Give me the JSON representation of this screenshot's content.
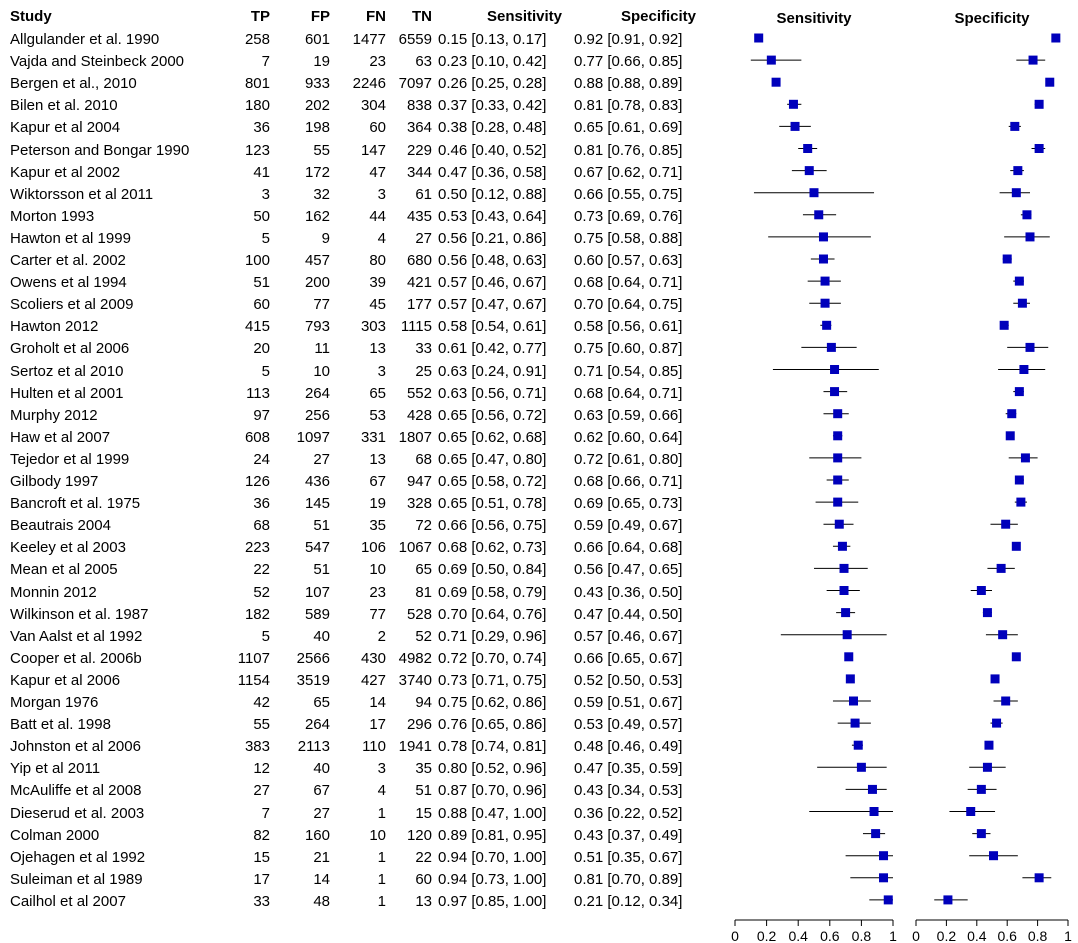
{
  "columns": {
    "study": "Study",
    "tp": "TP",
    "fp": "FP",
    "fn": "FN",
    "tn": "TN",
    "sensitivity": "Sensitivity",
    "specificity": "Specificity"
  },
  "chart_data": {
    "type": "forest",
    "panels": [
      {
        "title": "Sensitivity",
        "xlim": [
          0,
          1
        ],
        "ticks": [
          "0",
          "0.2",
          "0.4",
          "0.6",
          "0.8",
          "1"
        ]
      },
      {
        "title": "Specificity",
        "xlim": [
          0,
          1
        ],
        "ticks": [
          "0",
          "0.2",
          "0.4",
          "0.6",
          "0.8",
          "1"
        ]
      }
    ],
    "marker_color": "#0000bb",
    "rows": [
      {
        "study": "Allgulander et al. 1990",
        "tp": "258",
        "fp": "601",
        "fn": "1477",
        "tn": "6559",
        "sens_text": "0.15 [0.13, 0.17]",
        "spec_text": "0.92 [0.91, 0.92]",
        "sens": [
          0.15,
          0.13,
          0.17
        ],
        "spec": [
          0.92,
          0.91,
          0.92
        ]
      },
      {
        "study": "Vajda and Steinbeck 2000",
        "tp": "7",
        "fp": "19",
        "fn": "23",
        "tn": "63",
        "sens_text": "0.23 [0.10, 0.42]",
        "spec_text": "0.77 [0.66, 0.85]",
        "sens": [
          0.23,
          0.1,
          0.42
        ],
        "spec": [
          0.77,
          0.66,
          0.85
        ]
      },
      {
        "study": "Bergen et al., 2010",
        "tp": "801",
        "fp": "933",
        "fn": "2246",
        "tn": "7097",
        "sens_text": "0.26 [0.25, 0.28]",
        "spec_text": "0.88 [0.88, 0.89]",
        "sens": [
          0.26,
          0.25,
          0.28
        ],
        "spec": [
          0.88,
          0.88,
          0.89
        ]
      },
      {
        "study": "Bilen et al. 2010",
        "tp": "180",
        "fp": "202",
        "fn": "304",
        "tn": "838",
        "sens_text": "0.37 [0.33, 0.42]",
        "spec_text": "0.81 [0.78, 0.83]",
        "sens": [
          0.37,
          0.33,
          0.42
        ],
        "spec": [
          0.81,
          0.78,
          0.83
        ]
      },
      {
        "study": "Kapur et al 2004",
        "tp": "36",
        "fp": "198",
        "fn": "60",
        "tn": "364",
        "sens_text": "0.38 [0.28, 0.48]",
        "spec_text": "0.65 [0.61, 0.69]",
        "sens": [
          0.38,
          0.28,
          0.48
        ],
        "spec": [
          0.65,
          0.61,
          0.69
        ]
      },
      {
        "study": "Peterson and Bongar 1990",
        "tp": "123",
        "fp": "55",
        "fn": "147",
        "tn": "229",
        "sens_text": "0.46 [0.40, 0.52]",
        "spec_text": "0.81 [0.76, 0.85]",
        "sens": [
          0.46,
          0.4,
          0.52
        ],
        "spec": [
          0.81,
          0.76,
          0.85
        ]
      },
      {
        "study": "Kapur et al 2002",
        "tp": "41",
        "fp": "172",
        "fn": "47",
        "tn": "344",
        "sens_text": "0.47 [0.36, 0.58]",
        "spec_text": "0.67 [0.62, 0.71]",
        "sens": [
          0.47,
          0.36,
          0.58
        ],
        "spec": [
          0.67,
          0.62,
          0.71
        ]
      },
      {
        "study": "Wiktorsson et al 2011",
        "tp": "3",
        "fp": "32",
        "fn": "3",
        "tn": "61",
        "sens_text": "0.50 [0.12, 0.88]",
        "spec_text": "0.66 [0.55, 0.75]",
        "sens": [
          0.5,
          0.12,
          0.88
        ],
        "spec": [
          0.66,
          0.55,
          0.75
        ]
      },
      {
        "study": "Morton 1993",
        "tp": "50",
        "fp": "162",
        "fn": "44",
        "tn": "435",
        "sens_text": "0.53 [0.43, 0.64]",
        "spec_text": "0.73 [0.69, 0.76]",
        "sens": [
          0.53,
          0.43,
          0.64
        ],
        "spec": [
          0.73,
          0.69,
          0.76
        ]
      },
      {
        "study": "Hawton et al 1999",
        "tp": "5",
        "fp": "9",
        "fn": "4",
        "tn": "27",
        "sens_text": "0.56 [0.21, 0.86]",
        "spec_text": "0.75 [0.58, 0.88]",
        "sens": [
          0.56,
          0.21,
          0.86
        ],
        "spec": [
          0.75,
          0.58,
          0.88
        ]
      },
      {
        "study": "Carter et al. 2002",
        "tp": "100",
        "fp": "457",
        "fn": "80",
        "tn": "680",
        "sens_text": "0.56 [0.48, 0.63]",
        "spec_text": "0.60 [0.57, 0.63]",
        "sens": [
          0.56,
          0.48,
          0.63
        ],
        "spec": [
          0.6,
          0.57,
          0.63
        ]
      },
      {
        "study": "Owens et al 1994",
        "tp": "51",
        "fp": "200",
        "fn": "39",
        "tn": "421",
        "sens_text": "0.57 [0.46, 0.67]",
        "spec_text": "0.68 [0.64, 0.71]",
        "sens": [
          0.57,
          0.46,
          0.67
        ],
        "spec": [
          0.68,
          0.64,
          0.71
        ]
      },
      {
        "study": "Scoliers et al 2009",
        "tp": "60",
        "fp": "77",
        "fn": "45",
        "tn": "177",
        "sens_text": "0.57 [0.47, 0.67]",
        "spec_text": "0.70 [0.64, 0.75]",
        "sens": [
          0.57,
          0.47,
          0.67
        ],
        "spec": [
          0.7,
          0.64,
          0.75
        ]
      },
      {
        "study": "Hawton 2012",
        "tp": "415",
        "fp": "793",
        "fn": "303",
        "tn": "1115",
        "sens_text": "0.58 [0.54, 0.61]",
        "spec_text": "0.58 [0.56, 0.61]",
        "sens": [
          0.58,
          0.54,
          0.61
        ],
        "spec": [
          0.58,
          0.56,
          0.61
        ]
      },
      {
        "study": "Groholt et al 2006",
        "tp": "20",
        "fp": "11",
        "fn": "13",
        "tn": "33",
        "sens_text": "0.61 [0.42, 0.77]",
        "spec_text": "0.75 [0.60, 0.87]",
        "sens": [
          0.61,
          0.42,
          0.77
        ],
        "spec": [
          0.75,
          0.6,
          0.87
        ]
      },
      {
        "study": "Sertoz et al 2010",
        "tp": "5",
        "fp": "10",
        "fn": "3",
        "tn": "25",
        "sens_text": "0.63 [0.24, 0.91]",
        "spec_text": "0.71 [0.54, 0.85]",
        "sens": [
          0.63,
          0.24,
          0.91
        ],
        "spec": [
          0.71,
          0.54,
          0.85
        ]
      },
      {
        "study": "Hulten et al 2001",
        "tp": "113",
        "fp": "264",
        "fn": "65",
        "tn": "552",
        "sens_text": "0.63 [0.56, 0.71]",
        "spec_text": "0.68 [0.64, 0.71]",
        "sens": [
          0.63,
          0.56,
          0.71
        ],
        "spec": [
          0.68,
          0.64,
          0.71
        ]
      },
      {
        "study": "Murphy 2012",
        "tp": "97",
        "fp": "256",
        "fn": "53",
        "tn": "428",
        "sens_text": "0.65 [0.56, 0.72]",
        "spec_text": "0.63 [0.59, 0.66]",
        "sens": [
          0.65,
          0.56,
          0.72
        ],
        "spec": [
          0.63,
          0.59,
          0.66
        ]
      },
      {
        "study": "Haw et al 2007",
        "tp": "608",
        "fp": "1097",
        "fn": "331",
        "tn": "1807",
        "sens_text": "0.65 [0.62, 0.68]",
        "spec_text": "0.62 [0.60, 0.64]",
        "sens": [
          0.65,
          0.62,
          0.68
        ],
        "spec": [
          0.62,
          0.6,
          0.64
        ]
      },
      {
        "study": "Tejedor et al 1999",
        "tp": "24",
        "fp": "27",
        "fn": "13",
        "tn": "68",
        "sens_text": "0.65 [0.47, 0.80]",
        "spec_text": "0.72 [0.61, 0.80]",
        "sens": [
          0.65,
          0.47,
          0.8
        ],
        "spec": [
          0.72,
          0.61,
          0.8
        ]
      },
      {
        "study": "Gilbody 1997",
        "tp": "126",
        "fp": "436",
        "fn": "67",
        "tn": "947",
        "sens_text": "0.65 [0.58, 0.72]",
        "spec_text": "0.68 [0.66, 0.71]",
        "sens": [
          0.65,
          0.58,
          0.72
        ],
        "spec": [
          0.68,
          0.66,
          0.71
        ]
      },
      {
        "study": "Bancroft et al. 1975",
        "tp": "36",
        "fp": "145",
        "fn": "19",
        "tn": "328",
        "sens_text": "0.65 [0.51, 0.78]",
        "spec_text": "0.69 [0.65, 0.73]",
        "sens": [
          0.65,
          0.51,
          0.78
        ],
        "spec": [
          0.69,
          0.65,
          0.73
        ]
      },
      {
        "study": "Beautrais 2004",
        "tp": "68",
        "fp": "51",
        "fn": "35",
        "tn": "72",
        "sens_text": "0.66 [0.56, 0.75]",
        "spec_text": "0.59 [0.49, 0.67]",
        "sens": [
          0.66,
          0.56,
          0.75
        ],
        "spec": [
          0.59,
          0.49,
          0.67
        ]
      },
      {
        "study": "Keeley et al 2003",
        "tp": "223",
        "fp": "547",
        "fn": "106",
        "tn": "1067",
        "sens_text": "0.68 [0.62, 0.73]",
        "spec_text": "0.66 [0.64, 0.68]",
        "sens": [
          0.68,
          0.62,
          0.73
        ],
        "spec": [
          0.66,
          0.64,
          0.68
        ]
      },
      {
        "study": "Mean et al 2005",
        "tp": "22",
        "fp": "51",
        "fn": "10",
        "tn": "65",
        "sens_text": "0.69 [0.50, 0.84]",
        "spec_text": "0.56 [0.47, 0.65]",
        "sens": [
          0.69,
          0.5,
          0.84
        ],
        "spec": [
          0.56,
          0.47,
          0.65
        ]
      },
      {
        "study": "Monnin 2012",
        "tp": "52",
        "fp": "107",
        "fn": "23",
        "tn": "81",
        "sens_text": "0.69 [0.58, 0.79]",
        "spec_text": "0.43 [0.36, 0.50]",
        "sens": [
          0.69,
          0.58,
          0.79
        ],
        "spec": [
          0.43,
          0.36,
          0.5
        ]
      },
      {
        "study": "Wilkinson et al. 1987",
        "tp": "182",
        "fp": "589",
        "fn": "77",
        "tn": "528",
        "sens_text": "0.70 [0.64, 0.76]",
        "spec_text": "0.47 [0.44, 0.50]",
        "sens": [
          0.7,
          0.64,
          0.76
        ],
        "spec": [
          0.47,
          0.44,
          0.5
        ]
      },
      {
        "study": "Van Aalst et al 1992",
        "tp": "5",
        "fp": "40",
        "fn": "2",
        "tn": "52",
        "sens_text": "0.71 [0.29, 0.96]",
        "spec_text": "0.57 [0.46, 0.67]",
        "sens": [
          0.71,
          0.29,
          0.96
        ],
        "spec": [
          0.57,
          0.46,
          0.67
        ]
      },
      {
        "study": "Cooper et al. 2006b",
        "tp": "1107",
        "fp": "2566",
        "fn": "430",
        "tn": "4982",
        "sens_text": "0.72 [0.70, 0.74]",
        "spec_text": "0.66 [0.65, 0.67]",
        "sens": [
          0.72,
          0.7,
          0.74
        ],
        "spec": [
          0.66,
          0.65,
          0.67
        ]
      },
      {
        "study": "Kapur et al 2006",
        "tp": "1154",
        "fp": "3519",
        "fn": "427",
        "tn": "3740",
        "sens_text": "0.73 [0.71, 0.75]",
        "spec_text": "0.52 [0.50, 0.53]",
        "sens": [
          0.73,
          0.71,
          0.75
        ],
        "spec": [
          0.52,
          0.5,
          0.53
        ]
      },
      {
        "study": "Morgan 1976",
        "tp": "42",
        "fp": "65",
        "fn": "14",
        "tn": "94",
        "sens_text": "0.75 [0.62, 0.86]",
        "spec_text": "0.59 [0.51, 0.67]",
        "sens": [
          0.75,
          0.62,
          0.86
        ],
        "spec": [
          0.59,
          0.51,
          0.67
        ]
      },
      {
        "study": "Batt et al. 1998",
        "tp": "55",
        "fp": "264",
        "fn": "17",
        "tn": "296",
        "sens_text": "0.76 [0.65, 0.86]",
        "spec_text": "0.53 [0.49, 0.57]",
        "sens": [
          0.76,
          0.65,
          0.86
        ],
        "spec": [
          0.53,
          0.49,
          0.57
        ]
      },
      {
        "study": "Johnston et al 2006",
        "tp": "383",
        "fp": "2113",
        "fn": "110",
        "tn": "1941",
        "sens_text": "0.78 [0.74, 0.81]",
        "spec_text": "0.48 [0.46, 0.49]",
        "sens": [
          0.78,
          0.74,
          0.81
        ],
        "spec": [
          0.48,
          0.46,
          0.49
        ]
      },
      {
        "study": "Yip et al 2011",
        "tp": "12",
        "fp": "40",
        "fn": "3",
        "tn": "35",
        "sens_text": "0.80 [0.52, 0.96]",
        "spec_text": "0.47 [0.35, 0.59]",
        "sens": [
          0.8,
          0.52,
          0.96
        ],
        "spec": [
          0.47,
          0.35,
          0.59
        ]
      },
      {
        "study": "McAuliffe et al 2008",
        "tp": "27",
        "fp": "67",
        "fn": "4",
        "tn": "51",
        "sens_text": "0.87 [0.70, 0.96]",
        "spec_text": "0.43 [0.34, 0.53]",
        "sens": [
          0.87,
          0.7,
          0.96
        ],
        "spec": [
          0.43,
          0.34,
          0.53
        ]
      },
      {
        "study": "Dieserud et al. 2003",
        "tp": "7",
        "fp": "27",
        "fn": "1",
        "tn": "15",
        "sens_text": "0.88 [0.47, 1.00]",
        "spec_text": "0.36 [0.22, 0.52]",
        "sens": [
          0.88,
          0.47,
          1.0
        ],
        "spec": [
          0.36,
          0.22,
          0.52
        ]
      },
      {
        "study": "Colman 2000",
        "tp": "82",
        "fp": "160",
        "fn": "10",
        "tn": "120",
        "sens_text": "0.89 [0.81, 0.95]",
        "spec_text": "0.43 [0.37, 0.49]",
        "sens": [
          0.89,
          0.81,
          0.95
        ],
        "spec": [
          0.43,
          0.37,
          0.49
        ]
      },
      {
        "study": "Ojehagen et al 1992",
        "tp": "15",
        "fp": "21",
        "fn": "1",
        "tn": "22",
        "sens_text": "0.94 [0.70, 1.00]",
        "spec_text": "0.51 [0.35, 0.67]",
        "sens": [
          0.94,
          0.7,
          1.0
        ],
        "spec": [
          0.51,
          0.35,
          0.67
        ]
      },
      {
        "study": "Suleiman et al 1989",
        "tp": "17",
        "fp": "14",
        "fn": "1",
        "tn": "60",
        "sens_text": "0.94 [0.73, 1.00]",
        "spec_text": "0.81 [0.70, 0.89]",
        "sens": [
          0.94,
          0.73,
          1.0
        ],
        "spec": [
          0.81,
          0.7,
          0.89
        ]
      },
      {
        "study": "Cailhol et al 2007",
        "tp": "33",
        "fp": "48",
        "fn": "1",
        "tn": "13",
        "sens_text": "0.97 [0.85, 1.00]",
        "spec_text": "0.21 [0.12, 0.34]",
        "sens": [
          0.97,
          0.85,
          1.0
        ],
        "spec": [
          0.21,
          0.12,
          0.34
        ]
      }
    ]
  }
}
